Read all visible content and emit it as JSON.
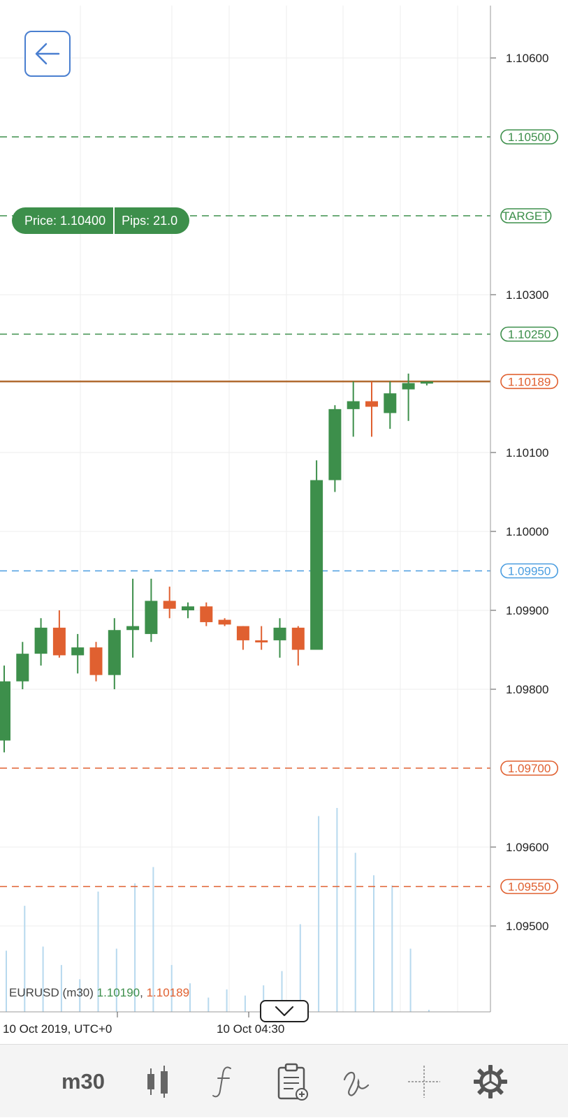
{
  "chart": {
    "symbol": "EURUSD",
    "timeframe_label": "(m30)",
    "bid": "1.10190",
    "separator": ",",
    "ask": "1.10189",
    "price_axis": {
      "min": 1.0942,
      "max": 1.1066,
      "ticks": [
        "1.10600",
        "1.10300",
        "1.10100",
        "1.10000",
        "1.09900",
        "1.09800",
        "1.09600",
        "1.09500"
      ]
    },
    "time_labels": [
      "10 Oct 2019, UTC+0",
      "10 Oct 04:30"
    ],
    "levels": [
      {
        "price": 1.105,
        "label": "1.10500",
        "color": "#3d8f4b"
      },
      {
        "price": 1.104,
        "label": "TARGET",
        "color": "#3d8f4b"
      },
      {
        "price": 1.1025,
        "label": "1.10250",
        "color": "#3d8f4b"
      },
      {
        "price": 1.1019,
        "label": "1.10189",
        "color": "#e06030",
        "kind": "current"
      },
      {
        "price": 1.0995,
        "label": "1.09950",
        "color": "#4a9de0"
      },
      {
        "price": 1.097,
        "label": "1.09700",
        "color": "#e06030"
      },
      {
        "price": 1.0955,
        "label": "1.09550",
        "color": "#e06030"
      }
    ],
    "target_order": {
      "price_text": "Price: 1.10400",
      "pips_text": "Pips: 21.0"
    },
    "colors": {
      "bull": "#3d8f4b",
      "bear": "#e06030",
      "grid": "#eeeeee",
      "volume": "#b7d9ee",
      "current_line": "#b06a30"
    },
    "candles": [
      {
        "o": 1.09735,
        "h": 1.0983,
        "l": 1.0972,
        "c": 1.0981
      },
      {
        "o": 1.0981,
        "h": 1.0986,
        "l": 1.098,
        "c": 1.09845
      },
      {
        "o": 1.09845,
        "h": 1.0989,
        "l": 1.0983,
        "c": 1.09878
      },
      {
        "o": 1.09878,
        "h": 1.099,
        "l": 1.0984,
        "c": 1.09843
      },
      {
        "o": 1.09843,
        "h": 1.0987,
        "l": 1.0982,
        "c": 1.09853
      },
      {
        "o": 1.09853,
        "h": 1.0986,
        "l": 1.0981,
        "c": 1.09818
      },
      {
        "o": 1.09818,
        "h": 1.0989,
        "l": 1.098,
        "c": 1.09875
      },
      {
        "o": 1.09875,
        "h": 1.0994,
        "l": 1.0984,
        "c": 1.0988
      },
      {
        "o": 1.0987,
        "h": 1.0994,
        "l": 1.0986,
        "c": 1.09912
      },
      {
        "o": 1.09912,
        "h": 1.0993,
        "l": 1.0989,
        "c": 1.09902
      },
      {
        "o": 1.099,
        "h": 1.0991,
        "l": 1.0989,
        "c": 1.09905
      },
      {
        "o": 1.09905,
        "h": 1.0991,
        "l": 1.0988,
        "c": 1.09885
      },
      {
        "o": 1.09888,
        "h": 1.0989,
        "l": 1.0988,
        "c": 1.09882
      },
      {
        "o": 1.0988,
        "h": 1.0988,
        "l": 1.0985,
        "c": 1.09862
      },
      {
        "o": 1.09862,
        "h": 1.0988,
        "l": 1.0985,
        "c": 1.0986
      },
      {
        "o": 1.09862,
        "h": 1.0989,
        "l": 1.0984,
        "c": 1.09878
      },
      {
        "o": 1.09878,
        "h": 1.0988,
        "l": 1.0983,
        "c": 1.0985
      },
      {
        "o": 1.0985,
        "h": 1.1009,
        "l": 1.0985,
        "c": 1.10065
      },
      {
        "o": 1.10065,
        "h": 1.1016,
        "l": 1.1005,
        "c": 1.10155
      },
      {
        "o": 1.10155,
        "h": 1.1019,
        "l": 1.1012,
        "c": 1.10165
      },
      {
        "o": 1.10165,
        "h": 1.1019,
        "l": 1.1012,
        "c": 1.10158
      },
      {
        "o": 1.1015,
        "h": 1.1019,
        "l": 1.1013,
        "c": 1.10175
      },
      {
        "o": 1.1018,
        "h": 1.102,
        "l": 1.1014,
        "c": 1.10188
      },
      {
        "o": 1.10188,
        "h": 1.1019,
        "l": 1.10185,
        "c": 1.1019
      }
    ],
    "volumes": [
      0.3,
      0.52,
      0.32,
      0.23,
      0.16,
      0.59,
      0.31,
      0.63,
      0.71,
      0.23,
      0.14,
      0.07,
      0.11,
      0.08,
      0.13,
      0.2,
      0.43,
      0.96,
      1.0,
      0.78,
      0.67,
      0.62,
      0.31,
      0.01
    ]
  },
  "toolbar": {
    "timeframe": "m30",
    "tools": [
      "candlestick-icon",
      "function-icon",
      "clipboard-icon",
      "draw-icon",
      "crosshair-icon",
      "gear-icon"
    ]
  }
}
